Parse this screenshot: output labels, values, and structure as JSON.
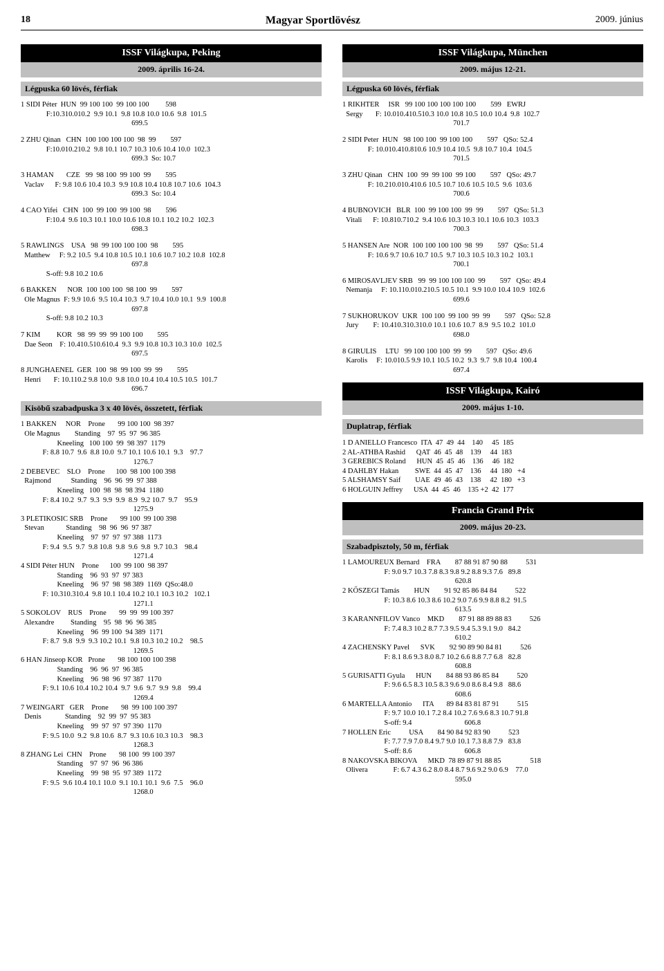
{
  "header": {
    "page_number": "18",
    "magazine_title": "Magyar Sportlövész",
    "issue_date": "2009. június"
  },
  "left": {
    "event1_title": "ISSF Világkupa, Peking",
    "event1_date": "2009. április 16-24.",
    "event1_discipline": "Légpuska 60 lövés, férfiak",
    "event1_entries": [
      {
        "rk": "1",
        "last": "SIDI Péter",
        "ctry": "HUN",
        "s": "99 100 100  99 100 100",
        "tot": "598",
        "f": "F:10.310.010.2  9.9 10.1  9.8 10.8 10.0 10.6  9.8",
        "ft": "101.5",
        "g": "699.5",
        "note": ""
      },
      {
        "rk": "2",
        "last": "ZHU Qinan",
        "ctry": "CHN",
        "s": "100 100 100 100  98  99",
        "tot": "597",
        "f": "F:10.010.210.2  9.8 10.1 10.7 10.3 10.6 10.4 10.0",
        "ft": "102.3",
        "g": "699.3",
        "note": "So: 10.7"
      },
      {
        "rk": "3",
        "last": "HAMAN",
        "last2": "Vaclav",
        "ctry": "CZE",
        "s": " 99  98 100  99 100  99",
        "tot": "595",
        "f": "F: 9.8 10.6 10.4 10.3  9.9 10.8 10.4 10.8 10.7 10.6",
        "ft": "104.3",
        "g": "699.3",
        "note": "So: 10.4"
      },
      {
        "rk": "4",
        "last": "CAO Yifei",
        "ctry": "CHN",
        "s": "100  99 100  99 100  98",
        "tot": "596",
        "f": "F:10.4  9.6 10.3 10.1 10.0 10.6 10.8 10.1 10.2 10.2",
        "ft": "102.3",
        "g": "698.3",
        "note": ""
      },
      {
        "rk": "5",
        "last": "RAWLINGS",
        "last2": "Matthew",
        "ctry": "USA",
        "s": " 98  99 100 100 100  98",
        "tot": "595",
        "f": "F: 9.2 10.5  9.4 10.8 10.5 10.1 10.6 10.7 10.2 10.8",
        "ft": "102.8",
        "g": "697.8",
        "note": "",
        "soff": "S-off: 9.8 10.2 10.6"
      },
      {
        "rk": "6",
        "last": "BAKKEN",
        "last2": "Ole Magnus",
        "ctry": "NOR",
        "s": "100 100 100  98 100  99",
        "tot": "597",
        "f": "F: 9.9 10.6  9.5 10.4 10.3  9.7 10.4 10.0 10.1  9.9",
        "ft": "100.8",
        "g": "697.8",
        "note": "",
        "soff": "S-off: 9.8 10.2 10.3"
      },
      {
        "rk": "7",
        "last": "KIM",
        "last2": "Dae Seon",
        "ctry": "KOR",
        "s": " 98  99  99  99 100 100",
        "tot": "595",
        "f": "F: 10.410.510.610.4  9.3  9.9 10.8 10.3 10.3 10.0",
        "ft": "102.5",
        "g": "697.5",
        "note": ""
      },
      {
        "rk": "8",
        "last": "JUNGHAENEL",
        "last2": "Henri",
        "ctry": "GER",
        "s": "100  98  99 100  99  99",
        "tot": "595",
        "f": "F: 10.110.2 9.8 10.0  9.8 10.0 10.4 10.4 10.5 10.5",
        "ft": "101.7",
        "g": "696.7",
        "note": ""
      }
    ],
    "event2_discipline": "Kisöbű szabadpuska 3 x 40 lövés, összetett, férfiak",
    "event2_block": "1 BAKKEN     NOR    Prone       99 100 100  98 397\n  Ole Magnus        Standing    97  95  97  96 385\n                    Kneeling   100 100  99  98 397  1179\n            F: 8.8 10.7  9.6  8.8 10.0  9.7 10.1 10.6 10.1  9.3    97.7\n                                                              1276.7\n2 DEBEVEC    SLO    Prone      100  98 100 100 398\n  Rajmond           Standing    96  96  99  97 388\n                    Kneeling   100  98  98  98 394  1180\n            F: 8.4 10.2  9.7  9.3  9.9  9.9  8.9  9.2 10.7  9.7    95.9\n                                                              1275.9\n3 PLETIKOSIC SRB    Prone       99 100  99 100 398\n  Stevan            Standing    98  96  96  97 387\n                    Kneeling    97  97  97  97 388  1173\n            F: 9.4  9.5  9.7  9.8 10.8  9.8  9.6  9.8  9.7 10.3    98.4\n                                                              1271.4\n4 SIDI Péter HUN    Prone      100  99 100  98 397\n                    Standing    96  93  97  97 383\n                    Kneeling    96  97  98  98 389  1169  QSo:48.0\n            F: 10.310.310.4  9.8 10.1 10.4 10.2 10.1 10.3 10.2   102.1\n                                                              1271.1\n5 SOKOLOV    RUS    Prone       99  99  99 100 397\n  Alexandre         Standing    95  98  96  96 385\n                    Kneeling    96  99 100  94 389  1171\n            F: 8.7  9.8  9.9  9.3 10.2 10.1  9.8 10.3 10.2 10.2    98.5\n                                                              1269.5\n6 HAN Jinseop KOR   Prone       98 100 100 100 398\n                    Standing    96  96  97  96 385\n                    Kneeling    96  98  96  97 387  1170\n            F: 9.1 10.6 10.4 10.2 10.4  9.7  9.6  9.7  9.9  9.8    99.4\n                                                              1269.4\n7 WEINGART   GER    Prone       98  99 100 100 397\n  Denis             Standing    92  99  97  95 383\n                    Kneeling    99  97  97  97 390  1170\n            F: 9.5 10.0  9.2  9.8 10.6  8.7  9.3 10.6 10.3 10.3    98.3\n                                                              1268.3\n8 ZHANG Lei  CHN    Prone       98 100  99 100 397\n                    Standing    97  97  96  96 386\n                    Kneeling    99  98  95  97 389  1172\n            F: 9.5  9.6 10.4 10.1 10.0  9.1 10.1 10.1  9.6  7.5    96.0\n                                                              1268.0"
  },
  "right": {
    "event3_title": "ISSF Világkupa, München",
    "event3_date": "2009. május 12-21.",
    "event3_discipline": "Légpuska 60 lövés, férfiak",
    "event3_entries": [
      {
        "rk": "1",
        "last": "RIKHTER",
        "last2": "Sergy",
        "ctry": "ISR",
        "s": " 99 100 100 100 100 100",
        "tot": "599",
        "f": "F: 10.010.410.510.3 10.0 10.8 10.5 10.0 10.4  9.8",
        "ft": "102.7",
        "g": "701.7",
        "note": "EWRJ"
      },
      {
        "rk": "2",
        "last": "SIDI Peter",
        "ctry": "HUN",
        "s": " 98 100 100  99 100 100",
        "tot": "597",
        "f": "F: 10.010.410.810.6 10.9 10.4 10.5  9.8 10.7 10.4",
        "ft": "104.5",
        "g": "701.5",
        "note": "QSo: 52.4"
      },
      {
        "rk": "3",
        "last": "ZHU Qinan",
        "ctry": "CHN",
        "s": "100  99  99 100  99 100",
        "tot": "597",
        "f": "F: 10.210.010.410.6 10.5 10.7 10.6 10.5 10.5  9.6",
        "ft": "103.6",
        "g": "700.6",
        "note": "QSo: 49.7"
      },
      {
        "rk": "4",
        "last": "BUBNOVICH",
        "last2": "Vitali",
        "ctry": "BLR",
        "s": "100  99 100 100  99  99",
        "tot": "597",
        "f": "F: 10.810.710.2  9.4 10.6 10.3 10.3 10.1 10.6 10.3",
        "ft": "103.3",
        "g": "700.3",
        "note": "QSo: 51.3"
      },
      {
        "rk": "5",
        "last": "HANSEN Are",
        "ctry": "NOR",
        "s": "100 100 100 100  98  99",
        "tot": "597",
        "f": "F: 10.6 9.7 10.6 10.7 10.5  9.7 10.3 10.5 10.3 10.2",
        "ft": "103.1",
        "g": "700.1",
        "note": "QSo: 51.4"
      },
      {
        "rk": "6",
        "last": "MIROSAVLJEV",
        "last2": "Nemanja",
        "ctry": "SRB",
        "s": " 99  99 100 100 100  99",
        "tot": "597",
        "f": "F: 10.110.010.210.5 10.5 10.1  9.9 10.0 10.4 10.9",
        "ft": "102.6",
        "g": "699.6",
        "note": "QSo: 49.4"
      },
      {
        "rk": "7",
        "last": "SUKHORUKOV",
        "last2": "Jury",
        "ctry": "UKR",
        "s": "100 100  99 100  99  99",
        "tot": "597",
        "f": "F: 10.410.310.310.0 10.1 10.6 10.7  8.9  9.5 10.2",
        "ft": "101.0",
        "g": "698.0",
        "note": "QSo: 52.8"
      },
      {
        "rk": "8",
        "last": "GIRULIS",
        "last2": "Karolis",
        "ctry": "LTU",
        "s": " 99 100 100 100  99  99",
        "tot": "597",
        "f": "F: 10.010.5 9.9 10.1 10.5 10.2  9.3  9.7  9.8 10.4",
        "ft": "100.4",
        "g": "697.4",
        "note": "QSo: 49.6"
      }
    ],
    "event4_title": "ISSF Világkupa, Kairó",
    "event4_date": "2009. május 1-10.",
    "event4_discipline": "Duplatrap, férfiak",
    "event4_block": "1 D ANIELLO Francesco  ITA  47  49  44    140     45  185\n2 AL-ATHBA Rashid      QAT  46  45  48    139     44  183\n3 GEREBICS Roland      HUN  45  45  46    136     46  182\n4 DAHLBY Hakan         SWE  44  45  47    136     44  180   +4\n5 ALSHAMSY Saif        UAE  49  46  43    138     42  180   +3\n6 HOLGUIN Jeffrey      USA  44  45  46    135 +2  42  177",
    "event5_title": "Francia Grand Prix",
    "event5_date": "2009. május 20-23.",
    "event5_discipline": "Szabadpisztoly, 50 m, férfiak",
    "event5_block": "1 LAMOUREUX Bernard    FRA        87 88 91 87 90 88          531\n                       F: 9.0 9.7 10.3 7.8 8.3 9.8 9.2 8.8 9.3 7.6   89.8\n                                                              620.8\n2 KŐSZEGI Tamás        HUN        91 92 85 86 84 84          522\n                       F: 10.3 8.6 10.3 8.6 10.2 9.0 7.6 9.9 8.8 8.2  91.5\n                                                              613.5\n3 KARANNFILOV Vanco    MKD        87 91 88 89 88 83          526\n                       F: 7.4 8.3 10.2 8.7 7.3 9.5 9.4 5.3 9.1 9.0   84.2\n                                                              610.2\n4 ZACHENSKY Pavel      SVK        92 90 89 90 84 81          526\n                       F: 8.1 8.6 9.3 8.0 8.7 10.2 6.6 8.8 7.7 6.8   82.8\n                                                              608.8\n5 GURISATTI Gyula      HUN        84 88 93 86 85 84          520\n                       F: 9.6 6.5 8.3 10.5 8.3 9.6 9.0 8.6 8.4 9.8   88.6\n                                                              608.6\n6 MARTELLA Antonio      ITA       89 84 83 81 87 91          515\n                       F: 9.7 10.0 10.1 7.2 8.4 10.2 7.6 9.6 8.3 10.7 91.8\n                       S-off: 9.4                             606.8\n7 HOLLEN Eric          USA        84 90 84 92 83 90          523\n                       F: 7.7 7.9 7.0 8.4 9.7 9.0 10.1 7.3 8.8 7.9   83.8\n                       S-off: 8.6                             606.8\n8 NAKOVSKA BIKOVA      MKD  78 89 87 91 88 85                518\n  Olivera              F: 6.7 4.3 6.2 8.0 8.4 8.7 9.6 9.2 9.0 6.9    77.0\n                                                              595.0"
  }
}
